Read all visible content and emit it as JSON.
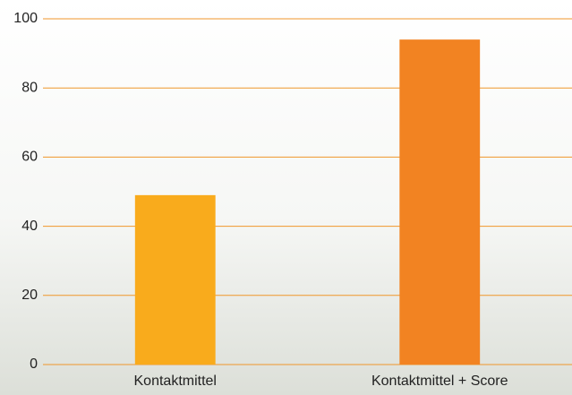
{
  "chart_data": {
    "type": "bar",
    "categories": [
      "Kontaktmittel",
      "Kontaktmittel + Score"
    ],
    "values": [
      49,
      94
    ],
    "colors": [
      "#f9ab1c",
      "#f28322"
    ],
    "ylim": [
      0,
      100
    ],
    "yticks": [
      0,
      20,
      40,
      60,
      80,
      100
    ],
    "grid": true,
    "grid_color": "#f0962a"
  }
}
